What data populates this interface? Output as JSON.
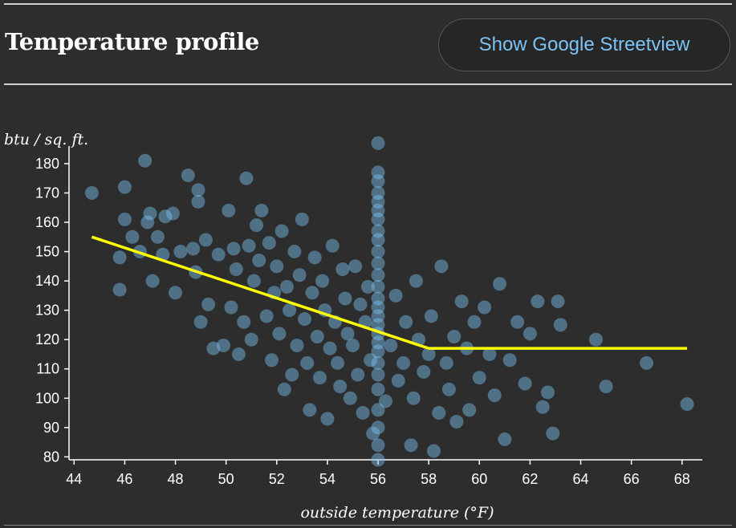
{
  "header": {
    "title": "Temperature profile",
    "streetview_button_label": "Show Google Streetview"
  },
  "colors": {
    "background": "#2d2d2d",
    "point": "#7cc4f4",
    "fit_line": "#ffff00",
    "axis": "#ffffff",
    "button_text": "#7cc4f4"
  },
  "chart_data": {
    "type": "scatter",
    "title": "",
    "xlabel": "outside temperature (°F)",
    "ylabel": "btu / sq. ft.",
    "xlim": [
      43.8,
      68.8
    ],
    "ylim": [
      79,
      186
    ],
    "xticks": [
      44,
      46,
      48,
      50,
      52,
      54,
      56,
      58,
      60,
      62,
      64,
      66,
      68
    ],
    "yticks": [
      80,
      90,
      100,
      110,
      120,
      130,
      140,
      150,
      160,
      170,
      180
    ],
    "grid": false,
    "series": [
      {
        "kind": "points",
        "points": [
          [
            44.7,
            170
          ],
          [
            45.8,
            137
          ],
          [
            45.8,
            148
          ],
          [
            46.0,
            161
          ],
          [
            46.0,
            172
          ],
          [
            46.3,
            155
          ],
          [
            46.6,
            150
          ],
          [
            46.8,
            181
          ],
          [
            46.9,
            160
          ],
          [
            47.0,
            163
          ],
          [
            47.1,
            140
          ],
          [
            47.3,
            155
          ],
          [
            47.5,
            149
          ],
          [
            47.6,
            162
          ],
          [
            47.9,
            163
          ],
          [
            48.0,
            136
          ],
          [
            48.2,
            150
          ],
          [
            48.5,
            176
          ],
          [
            48.7,
            151
          ],
          [
            48.8,
            143
          ],
          [
            48.9,
            171
          ],
          [
            48.9,
            167
          ],
          [
            49.0,
            126
          ],
          [
            49.2,
            154
          ],
          [
            49.3,
            132
          ],
          [
            49.5,
            117
          ],
          [
            49.7,
            149
          ],
          [
            49.9,
            118
          ],
          [
            50.1,
            164
          ],
          [
            50.2,
            131
          ],
          [
            50.3,
            151
          ],
          [
            50.4,
            144
          ],
          [
            50.5,
            115
          ],
          [
            50.7,
            126
          ],
          [
            50.8,
            175
          ],
          [
            50.9,
            152
          ],
          [
            51.0,
            120
          ],
          [
            51.1,
            140
          ],
          [
            51.2,
            159
          ],
          [
            51.3,
            147
          ],
          [
            51.4,
            164
          ],
          [
            51.6,
            128
          ],
          [
            51.7,
            153
          ],
          [
            51.8,
            113
          ],
          [
            51.9,
            136
          ],
          [
            52.0,
            145
          ],
          [
            52.1,
            122
          ],
          [
            52.2,
            157
          ],
          [
            52.3,
            103
          ],
          [
            52.4,
            138
          ],
          [
            52.5,
            130
          ],
          [
            52.6,
            108
          ],
          [
            52.7,
            150
          ],
          [
            52.8,
            118
          ],
          [
            52.9,
            142
          ],
          [
            53.0,
            161
          ],
          [
            53.1,
            127
          ],
          [
            53.2,
            112
          ],
          [
            53.3,
            96
          ],
          [
            53.4,
            136
          ],
          [
            53.5,
            148
          ],
          [
            53.6,
            121
          ],
          [
            53.7,
            107
          ],
          [
            53.8,
            140
          ],
          [
            53.9,
            130
          ],
          [
            54.0,
            93
          ],
          [
            54.1,
            117
          ],
          [
            54.2,
            152
          ],
          [
            54.3,
            126
          ],
          [
            54.4,
            112
          ],
          [
            54.5,
            104
          ],
          [
            54.6,
            144
          ],
          [
            54.7,
            134
          ],
          [
            54.8,
            122
          ],
          [
            54.9,
            100
          ],
          [
            55.0,
            118
          ],
          [
            55.1,
            145
          ],
          [
            55.2,
            108
          ],
          [
            55.3,
            132
          ],
          [
            55.4,
            95
          ],
          [
            55.5,
            126
          ],
          [
            55.6,
            138
          ],
          [
            55.7,
            113
          ],
          [
            55.8,
            88
          ],
          [
            56.0,
            79
          ],
          [
            56.0,
            84
          ],
          [
            56.0,
            90
          ],
          [
            56.0,
            96
          ],
          [
            56.0,
            103
          ],
          [
            56.0,
            108
          ],
          [
            56.0,
            112
          ],
          [
            56.0,
            116
          ],
          [
            56.0,
            119
          ],
          [
            56.0,
            122
          ],
          [
            56.0,
            125
          ],
          [
            56.0,
            128
          ],
          [
            56.0,
            131
          ],
          [
            56.0,
            134
          ],
          [
            56.0,
            138
          ],
          [
            56.0,
            142
          ],
          [
            56.0,
            146
          ],
          [
            56.0,
            150
          ],
          [
            56.0,
            154
          ],
          [
            56.0,
            157
          ],
          [
            56.0,
            161
          ],
          [
            56.0,
            164
          ],
          [
            56.0,
            167
          ],
          [
            56.0,
            170
          ],
          [
            56.0,
            174
          ],
          [
            56.0,
            177
          ],
          [
            56.0,
            187
          ],
          [
            56.3,
            99
          ],
          [
            56.5,
            118
          ],
          [
            56.7,
            135
          ],
          [
            56.8,
            106
          ],
          [
            57.0,
            112
          ],
          [
            57.1,
            126
          ],
          [
            57.3,
            84
          ],
          [
            57.4,
            100
          ],
          [
            57.5,
            140
          ],
          [
            57.6,
            120
          ],
          [
            57.8,
            109
          ],
          [
            58.0,
            115
          ],
          [
            58.1,
            128
          ],
          [
            58.2,
            82
          ],
          [
            58.4,
            95
          ],
          [
            58.5,
            145
          ],
          [
            58.7,
            112
          ],
          [
            58.8,
            103
          ],
          [
            59.0,
            121
          ],
          [
            59.1,
            92
          ],
          [
            59.3,
            133
          ],
          [
            59.5,
            117
          ],
          [
            59.6,
            96
          ],
          [
            59.8,
            126
          ],
          [
            60.0,
            107
          ],
          [
            60.2,
            131
          ],
          [
            60.4,
            115
          ],
          [
            60.6,
            101
          ],
          [
            60.8,
            139
          ],
          [
            61.0,
            86
          ],
          [
            61.2,
            113
          ],
          [
            61.5,
            126
          ],
          [
            61.8,
            105
          ],
          [
            62.0,
            122
          ],
          [
            62.3,
            133
          ],
          [
            62.5,
            97
          ],
          [
            62.7,
            102
          ],
          [
            62.9,
            88
          ],
          [
            63.1,
            133
          ],
          [
            63.2,
            125
          ],
          [
            64.6,
            120
          ],
          [
            65.0,
            104
          ],
          [
            66.6,
            112
          ],
          [
            68.2,
            98
          ]
        ]
      },
      {
        "kind": "fit_line",
        "points": [
          [
            44.7,
            155
          ],
          [
            58.0,
            117
          ],
          [
            68.2,
            117
          ]
        ]
      }
    ]
  }
}
